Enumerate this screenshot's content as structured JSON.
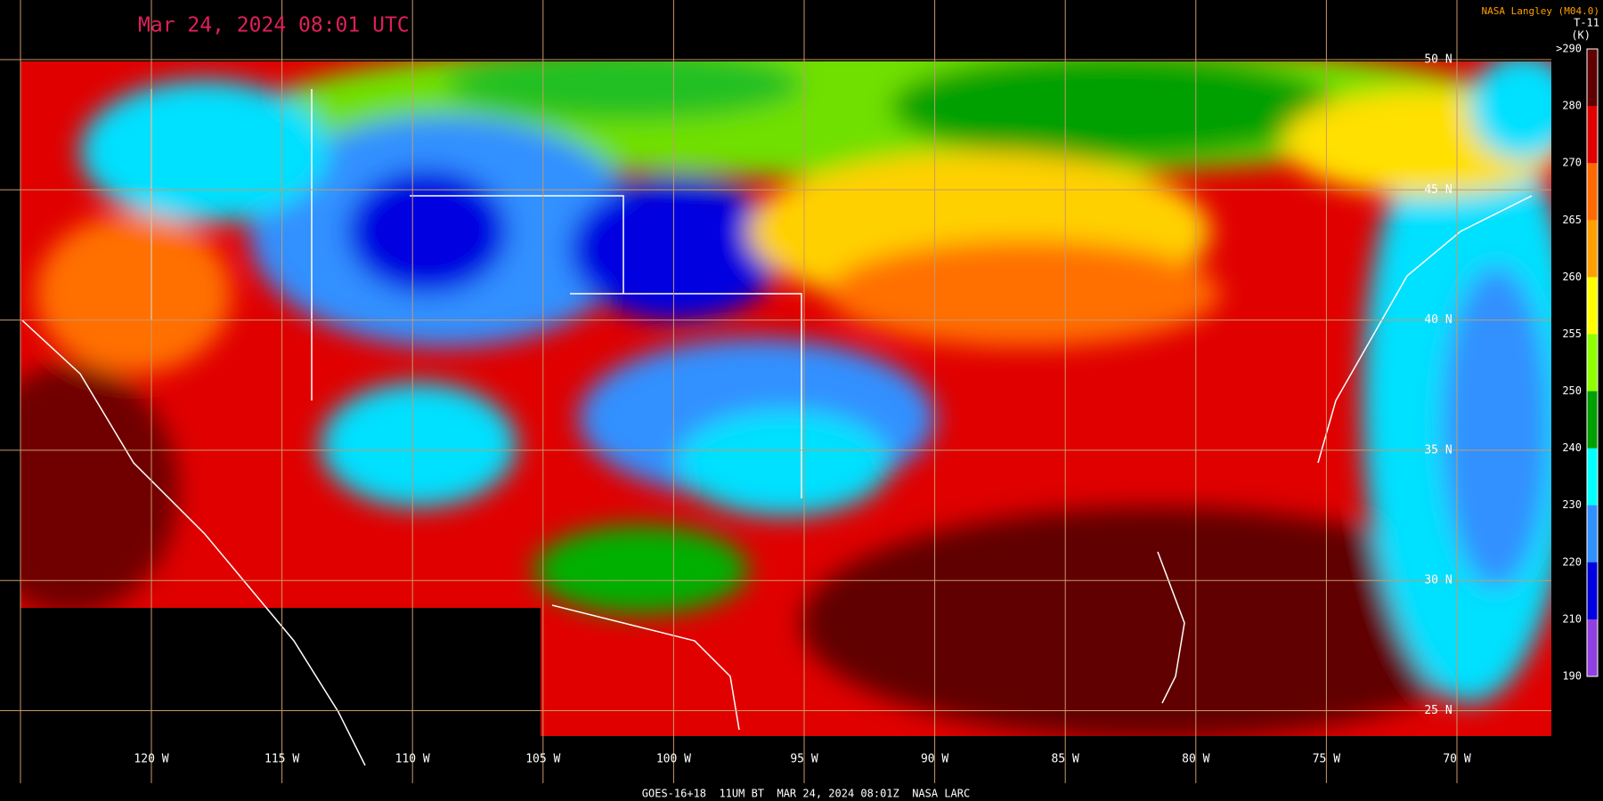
{
  "header": {
    "title": "Mar 24, 2024 08:01 UTC",
    "source": "NASA Langley (M04.0)",
    "channel": "T-11",
    "unit": "(K)"
  },
  "colorbar": {
    "labels": [
      ">290",
      "280",
      "270",
      "265",
      "260",
      "255",
      "250",
      "240",
      "230",
      "220",
      "210",
      "190"
    ],
    "colors": [
      "#600000",
      "#e00000",
      "#ff6a00",
      "#ffa000",
      "#ffff00",
      "#90ff00",
      "#00a000",
      "#00ffff",
      "#3090ff",
      "#0000e0",
      "#9040e0"
    ]
  },
  "longitudes": [
    "120 W",
    "115 W",
    "110 W",
    "105 W",
    "100 W",
    "95 W",
    "90 W",
    "85 W",
    "80 W",
    "75 W",
    "70 W"
  ],
  "latitudes": [
    "50 N",
    "45 N",
    "40 N",
    "35 N",
    "30 N",
    "25 N"
  ],
  "footer": "GOES-16+18  11UM BT  MAR 24, 2024 08:01Z  NASA LARC"
}
